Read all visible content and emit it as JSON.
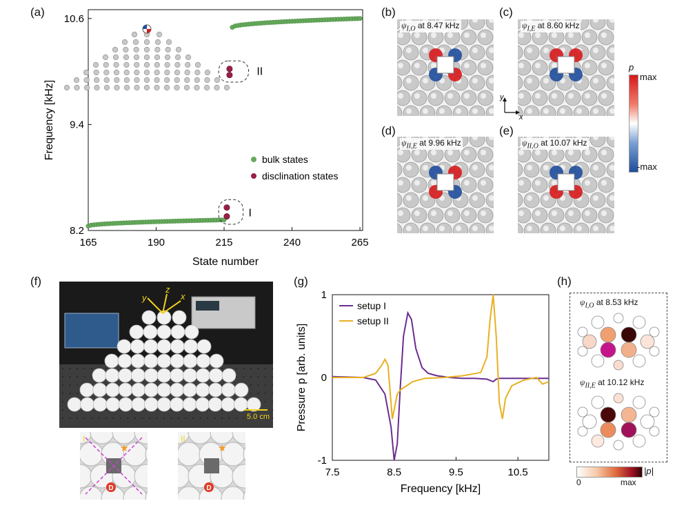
{
  "panels": {
    "a": {
      "label": "(a)",
      "legend_bulk": "bulk states",
      "legend_disc": "disclination states",
      "group1": "I",
      "group2": "II",
      "colors": {
        "bulk": "#66aa5c",
        "disc": "#9b2045"
      }
    },
    "b": {
      "label": "(b)",
      "psi": "ψ",
      "sub": "I,O",
      "text": " at 8.47 kHz"
    },
    "c": {
      "label": "(c)",
      "psi": "ψ",
      "sub": "I,E",
      "text": " at 8.60 kHz"
    },
    "d": {
      "label": "(d)",
      "psi": "ψ",
      "sub": "II,E",
      "text": " at 9.96 kHz"
    },
    "e": {
      "label": "(e)",
      "psi": "ψ",
      "sub": "II,O",
      "text": " at 10.07 kHz"
    },
    "colorbar": {
      "title": "p",
      "max": "max",
      "min": "-max"
    },
    "axes_xy": {
      "y": "y",
      "x": "x"
    },
    "f": {
      "label": "(f)",
      "scale": "5.0 cm",
      "ax_y": "y",
      "ax_z": "z",
      "ax_x": "x",
      "inset1": "I",
      "inset2": "II",
      "marker": "D"
    },
    "g": {
      "label": "(g)",
      "legend1": "setup I",
      "legend2": "setup II",
      "colors": {
        "setup1": "#6a2c91",
        "setup2": "#e8b020"
      }
    },
    "h": {
      "label": "(h)",
      "top_psi": "ψ",
      "top_sub": "I,O",
      "top_text": " at 8.53 kHz",
      "bot_psi": "ψ",
      "bot_sub": "II,E",
      "bot_text": " at 10.12 kHz",
      "cb_min": "0",
      "cb_max": "max",
      "cb_title": "|p|"
    }
  },
  "chart_data": [
    {
      "id": "a",
      "type": "scatter",
      "xlabel": "State number",
      "ylabel": "Frequency [kHz]",
      "xlim": [
        165,
        266
      ],
      "ylim": [
        8.2,
        10.7
      ],
      "xticks": [
        165,
        190,
        215,
        240,
        265
      ],
      "yticks": [
        8.2,
        9.4,
        10.6
      ],
      "series": [
        {
          "name": "bulk states",
          "segments": [
            {
              "x_start": 165,
              "x_end": 215,
              "y_start": 8.25,
              "y_end": 8.32
            },
            {
              "x_start": 218,
              "x_end": 265,
              "y_start": 10.5,
              "y_end": 10.6
            }
          ]
        },
        {
          "name": "disclination states",
          "points": [
            [
              216,
              8.46
            ],
            [
              216,
              8.36
            ],
            [
              217,
              10.03
            ],
            [
              217,
              9.96
            ]
          ]
        }
      ]
    },
    {
      "id": "g",
      "type": "line",
      "xlabel": "Frequency [kHz]",
      "ylabel": "Pressure p [arb. units]",
      "xlim": [
        7.5,
        11.0
      ],
      "ylim": [
        -1,
        1
      ],
      "xticks": [
        7.5,
        8.5,
        9.5,
        10.5
      ],
      "yticks": [
        -1,
        0,
        1
      ],
      "series": [
        {
          "name": "setup I",
          "x": [
            7.5,
            8.0,
            8.2,
            8.35,
            8.45,
            8.5,
            8.55,
            8.6,
            8.65,
            8.72,
            8.78,
            8.85,
            8.95,
            9.05,
            9.2,
            9.4,
            9.6,
            9.8,
            10.0,
            10.1,
            10.15,
            10.2,
            10.3,
            10.5,
            10.8,
            11.0
          ],
          "y": [
            0.01,
            0.0,
            -0.03,
            -0.2,
            -0.6,
            -1.0,
            -0.8,
            -0.1,
            0.5,
            0.78,
            0.7,
            0.35,
            0.12,
            0.05,
            0.02,
            0.0,
            -0.01,
            -0.01,
            -0.02,
            -0.05,
            -0.02,
            -0.01,
            -0.01,
            -0.01,
            -0.01,
            -0.01
          ]
        },
        {
          "name": "setup II",
          "x": [
            7.5,
            8.0,
            8.2,
            8.3,
            8.35,
            8.4,
            8.47,
            8.55,
            8.6,
            8.7,
            8.8,
            9.0,
            9.3,
            9.6,
            9.9,
            10.0,
            10.05,
            10.1,
            10.15,
            10.2,
            10.25,
            10.3,
            10.4,
            10.6,
            10.8,
            10.9,
            11.0
          ],
          "y": [
            0.0,
            0.0,
            0.05,
            0.15,
            0.22,
            0.15,
            -0.5,
            -0.2,
            -0.15,
            -0.1,
            -0.05,
            -0.01,
            0.0,
            0.02,
            0.06,
            0.25,
            0.7,
            1.0,
            0.5,
            -0.3,
            -0.5,
            -0.25,
            -0.1,
            -0.03,
            0.0,
            -0.08,
            -0.05
          ]
        }
      ]
    }
  ]
}
